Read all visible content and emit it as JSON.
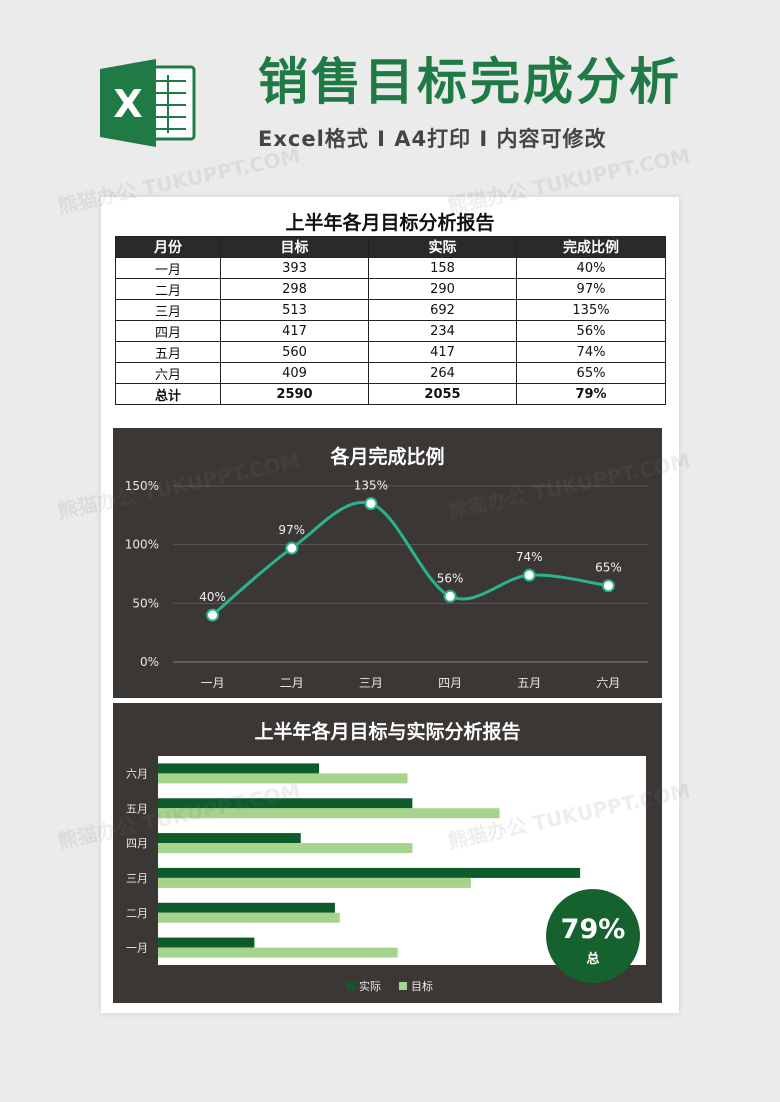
{
  "header": {
    "logo_letter": "X",
    "title": "销售目标完成分析",
    "subtitle": "Excel格式 I A4打印 I 内容可修改"
  },
  "watermark_text": "熊猫办公 TUKUPPT.COM",
  "table": {
    "title": "上半年各月目标分析报告",
    "headers": [
      "月份",
      "目标",
      "实际",
      "完成比例"
    ],
    "rows": [
      [
        "一月",
        "393",
        "158",
        "40%"
      ],
      [
        "二月",
        "298",
        "290",
        "97%"
      ],
      [
        "三月",
        "513",
        "692",
        "135%"
      ],
      [
        "四月",
        "417",
        "234",
        "56%"
      ],
      [
        "五月",
        "560",
        "417",
        "74%"
      ],
      [
        "六月",
        "409",
        "264",
        "65%"
      ]
    ],
    "total": [
      "总计",
      "2590",
      "2055",
      "79%"
    ]
  },
  "colors": {
    "brand_green": "#1f7a45",
    "panel_bg": "#3b3735",
    "line": "#2ab38f",
    "bar_actual": "#0d5a2a",
    "bar_target": "#a7d48c",
    "badge": "#15622f"
  },
  "chart_data": [
    {
      "type": "line",
      "title": "各月完成比例",
      "categories": [
        "一月",
        "二月",
        "三月",
        "四月",
        "五月",
        "六月"
      ],
      "values": [
        40,
        97,
        135,
        56,
        74,
        65
      ],
      "data_labels": [
        "40%",
        "97%",
        "135%",
        "56%",
        "74%",
        "65%"
      ],
      "yticks": [
        "0%",
        "50%",
        "100%",
        "150%"
      ],
      "ylim": [
        0,
        150
      ],
      "grid": true,
      "smooth": true
    },
    {
      "type": "bar",
      "orientation": "horizontal",
      "title": "上半年各月目标与实际分析报告",
      "categories": [
        "一月",
        "二月",
        "三月",
        "四月",
        "五月",
        "六月"
      ],
      "series": [
        {
          "name": "实际",
          "values": [
            158,
            290,
            692,
            234,
            417,
            264
          ]
        },
        {
          "name": "目标",
          "values": [
            393,
            298,
            513,
            417,
            560,
            409
          ]
        }
      ],
      "xlim": [
        0,
        800
      ],
      "legend": "bottom",
      "badge": {
        "value": "79%",
        "label": "总"
      }
    }
  ]
}
